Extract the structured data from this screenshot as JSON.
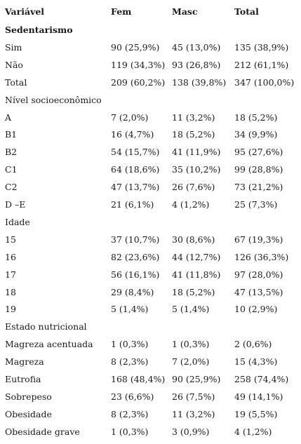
{
  "header": {
    "variable": "Variável",
    "fem": "Fem",
    "masc": "Masc",
    "total": "Total"
  },
  "rows": [
    {
      "label": "Sedentarismo",
      "section": true,
      "bold": true
    },
    {
      "label": "Sim",
      "fem": "90 (25,9%)",
      "masc": "45 (13,0%)",
      "total": "135 (38,9%)"
    },
    {
      "label": "Não",
      "fem": "119 (34,3%)",
      "masc": "93 (26,8%)",
      "total": "212 (61,1%)"
    },
    {
      "label": "Total",
      "fem": "209 (60,2%)",
      "masc": "138 (39,8%)",
      "total": "347 (100,0%)"
    },
    {
      "label": "Nível socioeconômico",
      "section": true
    },
    {
      "label": "A",
      "fem": "7 (2,0%)",
      "masc": "11 (3,2%)",
      "total": "18 (5,2%)"
    },
    {
      "label": "B1",
      "fem": "16 (4,7%)",
      "masc": "18 (5,2%)",
      "total": "34 (9,9%)"
    },
    {
      "label": "B2",
      "fem": "54 (15,7%)",
      "masc": "41 (11,9%)",
      "total": "95 (27,6%)"
    },
    {
      "label": "C1",
      "fem": "64 (18,6%)",
      "masc": "35 (10,2%)",
      "total": "99 (28,8%)"
    },
    {
      "label": "C2",
      "fem": "47 (13,7%)",
      "masc": "26 (7,6%)",
      "total": "73 (21,2%)"
    },
    {
      "label": "D –E",
      "fem": "21 (6,1%)",
      "masc": "4 (1,2%)",
      "total": "25 (7,3%)"
    },
    {
      "label": "Idade",
      "section": true
    },
    {
      "label": "15",
      "fem": "37 (10,7%)",
      "masc": "30 (8,6%)",
      "total": "67 (19,3%)"
    },
    {
      "label": "16",
      "fem": "82 (23,6%)",
      "masc": "44 (12,7%)",
      "total": "126 (36,3%)"
    },
    {
      "label": "17",
      "fem": "56 (16,1%)",
      "masc": "41 (11,8%)",
      "total": "97 (28,0%)"
    },
    {
      "label": "18",
      "fem": "29 (8,4%)",
      "masc": "18 (5,2%)",
      "total": "47 (13,5%)"
    },
    {
      "label": "19",
      "fem": "5 (1,4%)",
      "masc": "5 (1,4%)",
      "total": "10 (2,9%)"
    },
    {
      "label": "Estado nutricional",
      "section": true
    },
    {
      "label": "Magreza acentuada",
      "fem": "1 (0,3%)",
      "masc": "1 (0,3%)",
      "total": "2 (0,6%)"
    },
    {
      "label": "Magreza",
      "fem": "8 (2,3%)",
      "masc": "7 (2,0%)",
      "total": "15 (4,3%)"
    },
    {
      "label": "Eutrofia",
      "fem": "168 (48,4%)",
      "masc": "90 (25,9%)",
      "total": "258 (74,4%)"
    },
    {
      "label": "Sobrepeso",
      "fem": "23 (6,6%)",
      "masc": "26 (7,5%)",
      "total": "49 (14,1%)"
    },
    {
      "label": "Obesidade",
      "fem": "8 (2,3%)",
      "masc": "11 (3,2%)",
      "total": "19 (5,5%)"
    },
    {
      "label": "Obesidade grave",
      "fem": "1 (0,3%)",
      "masc": "3 (0,9%)",
      "total": "4 (1,2%)"
    }
  ]
}
